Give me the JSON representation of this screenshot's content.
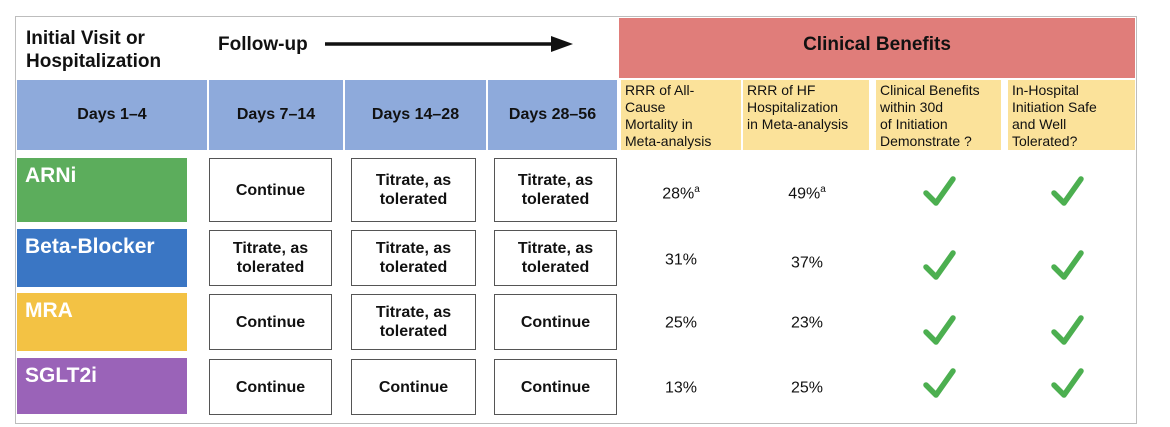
{
  "header": {
    "initial_line1": "Initial Visit or",
    "initial_line2": "Hospitalization",
    "followup": "Follow-up",
    "clinical_benefits": "Clinical Benefits"
  },
  "days": [
    "Days 1–4",
    "Days 7–14",
    "Days 14–28",
    "Days 28–56"
  ],
  "benefit_columns": [
    {
      "lines": [
        "RRR of All-",
        "Cause",
        "Mortality in",
        "Meta-analysis"
      ]
    },
    {
      "lines": [
        "RRR of HF",
        "Hospitalization",
        "in Meta-analysis"
      ]
    },
    {
      "lines": [
        "Clinical Benefits",
        "within 30d",
        "of Initiation",
        "Demonstrate  ?"
      ]
    },
    {
      "lines": [
        "In-Hospital",
        "Initiation Safe",
        "and Well",
        "Tolerated?"
      ]
    }
  ],
  "drugs": [
    {
      "name": "ARNi",
      "color": "#5cad5c",
      "steps": [
        [
          "Continue"
        ],
        [
          "Titrate, as",
          "tolerated"
        ],
        [
          "Titrate, as",
          "tolerated"
        ]
      ],
      "mortality": "28%",
      "mortality_sup": "a",
      "hf_hosp": "49%",
      "hf_hosp_sup": "a"
    },
    {
      "name": "Beta-Blocker",
      "color": "#3a76c4",
      "steps": [
        [
          "Titrate, as",
          "tolerated"
        ],
        [
          "Titrate, as",
          "tolerated"
        ],
        [
          "Titrate, as",
          "tolerated"
        ]
      ],
      "mortality": "31%",
      "mortality_sup": "",
      "hf_hosp": "37%",
      "hf_hosp_sup": ""
    },
    {
      "name": "MRA",
      "color": "#f3c244",
      "steps": [
        [
          "Continue"
        ],
        [
          "Titrate, as",
          "tolerated"
        ],
        [
          "Continue"
        ]
      ],
      "mortality": "25%",
      "mortality_sup": "",
      "hf_hosp": "23%",
      "hf_hosp_sup": ""
    },
    {
      "name": "SGLT2i",
      "color": "#9a63b8",
      "steps": [
        [
          "Continue"
        ],
        [
          "Continue"
        ],
        [
          "Continue"
        ]
      ],
      "mortality": "13%",
      "mortality_sup": "",
      "hf_hosp": "25%",
      "hf_hosp_sup": ""
    }
  ],
  "check_color": "#4caf50"
}
